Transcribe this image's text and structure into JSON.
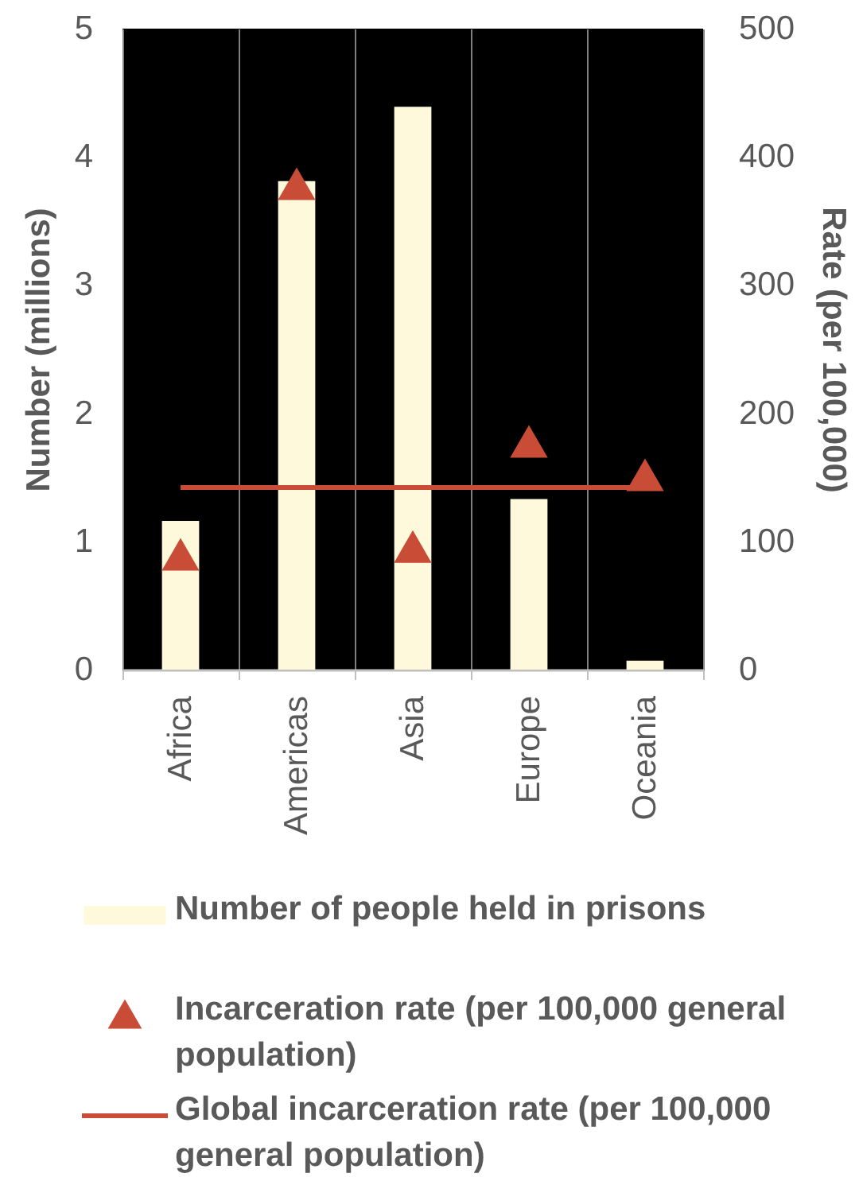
{
  "chart_data": {
    "type": "bar",
    "categories": [
      "Africa",
      "Americas",
      "Asia",
      "Europe",
      "Oceania"
    ],
    "ylabel": "Number (millions)",
    "y2label": "Rate (per 100,000)",
    "ylim": [
      0,
      5
    ],
    "yticks": [
      0,
      1,
      2,
      3,
      4,
      5
    ],
    "y2lim": [
      0,
      500
    ],
    "y2ticks": [
      0,
      100,
      200,
      300,
      400,
      500
    ],
    "series": [
      {
        "name": "Number of people held in prisons",
        "color": "#fff9dc",
        "values": [
          1.16,
          3.81,
          4.39,
          1.33,
          0.07
        ]
      },
      {
        "name": "Incarceration rate (per 100,000 general population)",
        "type": "scatter",
        "axis": "y2",
        "marker": "triangle",
        "color": "#c94c37",
        "values": [
          90,
          379,
          96,
          178,
          152
        ]
      },
      {
        "name": "Global incarceration rate (per 100,000 general population)",
        "type": "line",
        "axis": "y2",
        "color": "#c94c37",
        "values": [
          142,
          142,
          142,
          142,
          142
        ]
      }
    ],
    "grid": "x",
    "legend": "bottom"
  }
}
